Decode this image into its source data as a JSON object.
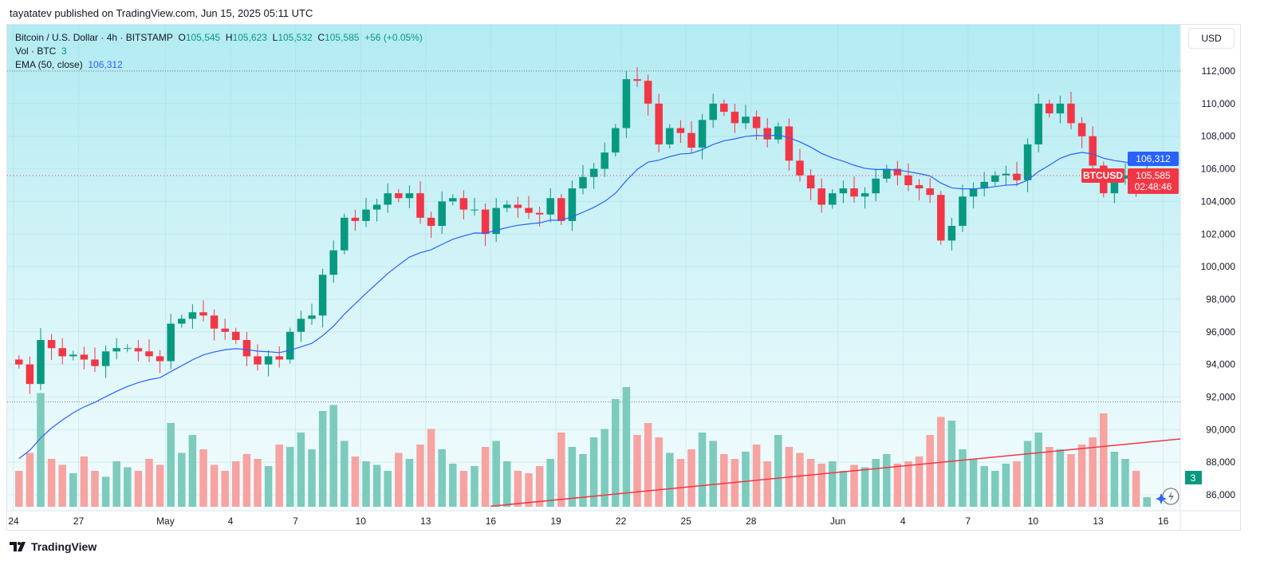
{
  "header": {
    "published": "tayatatev published on TradingView.com, Jun 15, 2025 05:11 UTC"
  },
  "legend": {
    "symbol": "Bitcoin / U.S. Dollar · 4h · BITSTAMP",
    "o_label": "O",
    "o": "105,545",
    "h_label": "H",
    "h": "105,623",
    "l_label": "L",
    "l": "105,532",
    "c_label": "C",
    "c": "105,585",
    "change": "+56 (+0.05%)",
    "vol_label": "Vol · BTC",
    "vol": "3",
    "ema_label": "EMA (50, close)",
    "ema": "106,312"
  },
  "currency_button": "USD",
  "badges": {
    "symbol": "BTCUSD",
    "price": "105,585",
    "countdown": "02:48:46",
    "ema": "106,312",
    "volume": "3"
  },
  "footer": {
    "brand": "TradingView"
  },
  "colors": {
    "up": "#089981",
    "down": "#f23645",
    "ema": "#2962ff",
    "trendline": "#f23645",
    "vol_up": "#7dcbbd",
    "vol_down": "#f7a3a1"
  },
  "chart_data": {
    "type": "candlestick",
    "title": "Bitcoin / U.S. Dollar · 4h · BITSTAMP",
    "ylim": [
      85000,
      113500
    ],
    "yticks": [
      86000,
      88000,
      90000,
      92000,
      94000,
      96000,
      98000,
      100000,
      102000,
      104000,
      106000,
      108000,
      110000,
      112000
    ],
    "ytick_labels": [
      "86,000",
      "88,000",
      "90,000",
      "92,000",
      "94,000",
      "96,000",
      "98,000",
      "100,000",
      "102,000",
      "104,000",
      "106,000",
      "108,000",
      "110,000",
      "112,000"
    ],
    "x_unit": "days since Apr 24",
    "xlim": [
      -0.3,
      53.8
    ],
    "xticks": [
      {
        "day": 0,
        "label": "24"
      },
      {
        "day": 3,
        "label": "27"
      },
      {
        "day": 7,
        "label": "May"
      },
      {
        "day": 10,
        "label": "4"
      },
      {
        "day": 13,
        "label": "7"
      },
      {
        "day": 16,
        "label": "10"
      },
      {
        "day": 19,
        "label": "13"
      },
      {
        "day": 22,
        "label": "16"
      },
      {
        "day": 25,
        "label": "19"
      },
      {
        "day": 28,
        "label": "22"
      },
      {
        "day": 31,
        "label": "25"
      },
      {
        "day": 34,
        "label": "28"
      },
      {
        "day": 38,
        "label": "Jun"
      },
      {
        "day": 41,
        "label": "4"
      },
      {
        "day": 44,
        "label": "7"
      },
      {
        "day": 47,
        "label": "10"
      },
      {
        "day": 50,
        "label": "13"
      },
      {
        "day": 53,
        "label": "16"
      }
    ],
    "bar_days": 0.5,
    "closes": [
      94000,
      92800,
      95500,
      95000,
      94500,
      94600,
      94300,
      93900,
      94800,
      95000,
      95000,
      94800,
      94500,
      94200,
      96500,
      96800,
      97200,
      97000,
      96200,
      96000,
      95500,
      94500,
      94000,
      94500,
      94300,
      96000,
      96800,
      97000,
      99500,
      101000,
      103000,
      102800,
      103500,
      103800,
      104500,
      104200,
      104500,
      103000,
      102500,
      104000,
      104200,
      103500,
      103500,
      102000,
      103600,
      103800,
      103600,
      103300,
      103200,
      104200,
      102800,
      104800,
      105500,
      106000,
      107000,
      108500,
      111500,
      111400,
      110000,
      107500,
      108500,
      108200,
      107300,
      109000,
      110000,
      109500,
      108800,
      109200,
      108500,
      107800,
      108600,
      106500,
      105600,
      104800,
      103800,
      104500,
      104800,
      104300,
      104500,
      105400,
      106000,
      105600,
      105000,
      104800,
      104400,
      101600,
      102500,
      104300,
      104800,
      105200,
      105600,
      105700,
      105300,
      107500,
      110000,
      109400,
      110000,
      108800,
      108000,
      106200,
      104500,
      105400,
      105600,
      105000,
      105585
    ],
    "volumes": [
      30,
      45,
      95,
      40,
      35,
      28,
      42,
      30,
      25,
      38,
      33,
      30,
      40,
      35,
      70,
      45,
      60,
      48,
      35,
      30,
      38,
      44,
      40,
      34,
      52,
      50,
      62,
      48,
      80,
      85,
      55,
      42,
      38,
      35,
      30,
      45,
      40,
      52,
      65,
      48,
      36,
      30,
      34,
      50,
      55,
      38,
      30,
      28,
      34,
      40,
      62,
      50,
      44,
      58,
      65,
      90,
      100,
      60,
      70,
      58,
      45,
      40,
      48,
      62,
      55,
      44,
      40,
      46,
      52,
      38,
      60,
      50,
      45,
      40,
      36,
      38,
      30,
      35,
      33,
      40,
      44,
      36,
      38,
      42,
      60,
      75,
      72,
      48,
      40,
      34,
      30,
      36,
      38,
      55,
      62,
      50,
      48,
      44,
      52,
      58,
      78,
      46,
      40,
      30,
      8
    ],
    "ema": {
      "period_label": "EMA (50, close)",
      "last": 106312
    },
    "trendline": {
      "from": {
        "day": 22,
        "price": 85300
      },
      "to": {
        "day": 53.8,
        "price": 89430
      }
    },
    "current_price": 105585,
    "reference_lines": [
      112000,
      91700
    ]
  }
}
